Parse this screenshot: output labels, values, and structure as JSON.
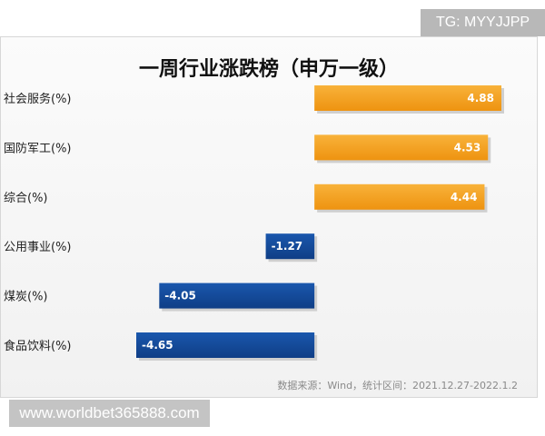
{
  "badge": "TG: MYYJJPP",
  "watermark": "www.worldbet365888.com",
  "source_note": "数据来源：Wind，统计区间：2021.12.27-2022.1.2",
  "chart_data": {
    "type": "bar",
    "orientation": "horizontal",
    "title": "一周行业涨跌榜（申万一级）",
    "categories": [
      "社会服务(%)",
      "国防军工(%)",
      "综合(%)",
      "公用事业(%)",
      "煤炭(%)",
      "食品饮料(%)"
    ],
    "values": [
      4.88,
      4.53,
      4.44,
      -1.27,
      -4.05,
      -4.65
    ],
    "value_labels": [
      "4.88",
      "4.53",
      "4.44",
      "-1.27",
      "-4.05",
      "-4.65"
    ],
    "xlim": [
      -4.65,
      4.88
    ],
    "colors": {
      "positive": "#f39c12",
      "negative": "#12489a"
    },
    "grid": false,
    "legend": "none"
  }
}
